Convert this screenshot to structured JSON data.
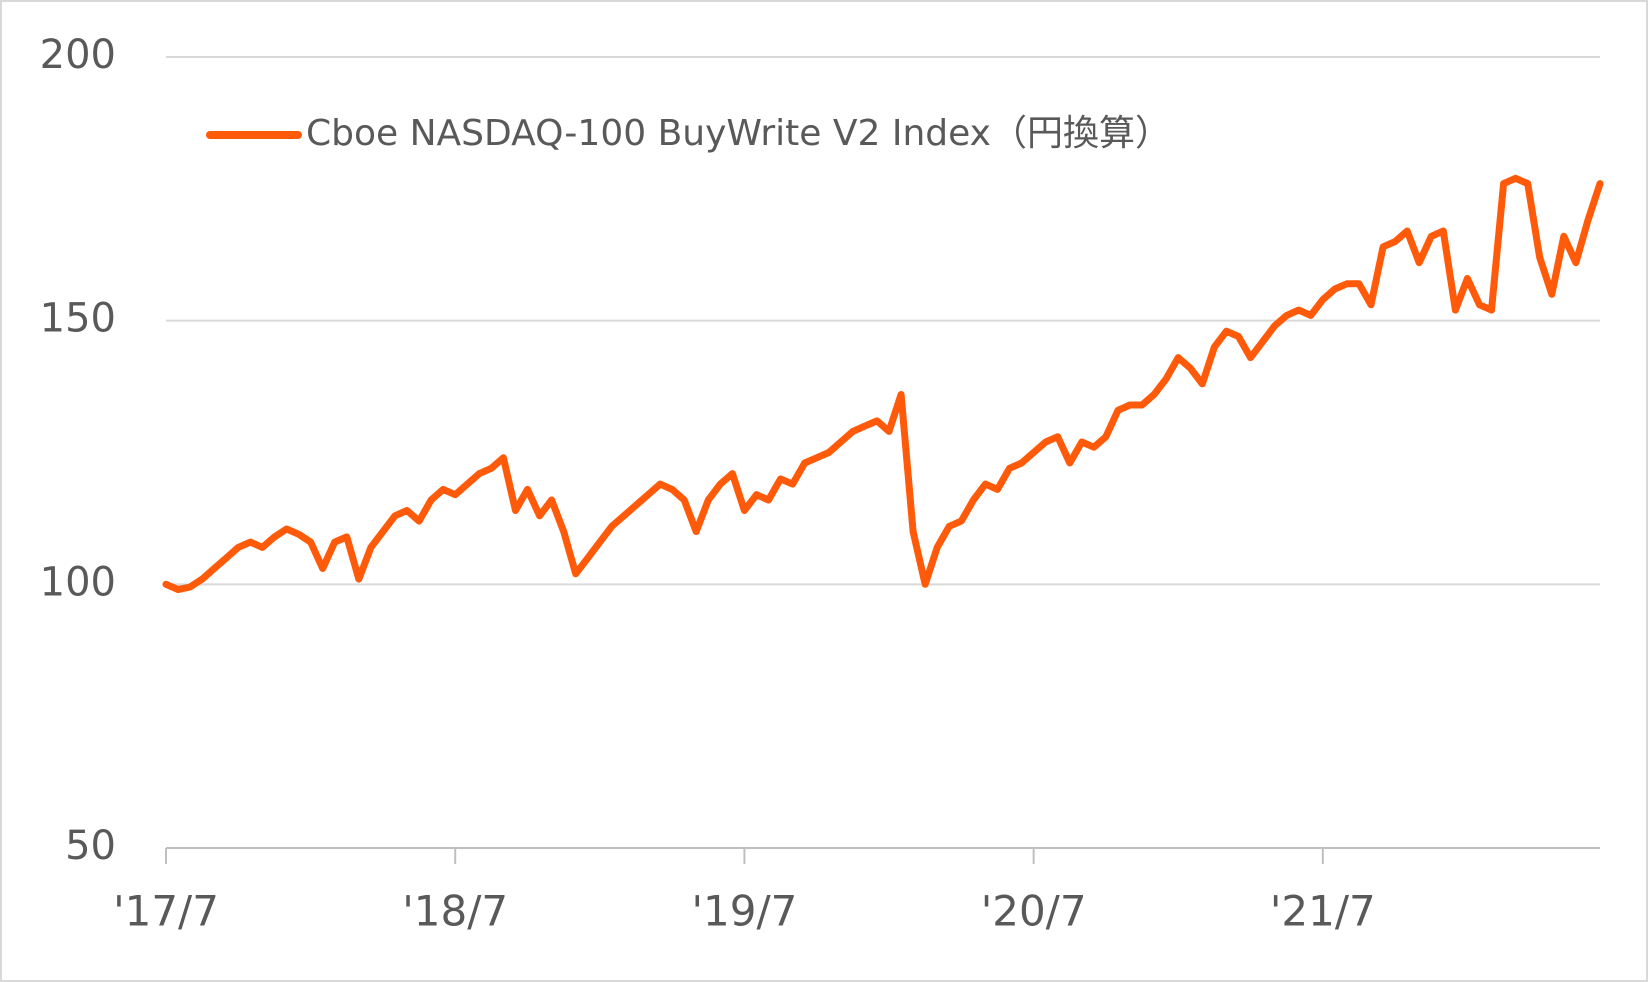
{
  "chart_data": {
    "type": "line",
    "categories": [
      "'17/7",
      null,
      null,
      null,
      null,
      null,
      null,
      null,
      null,
      null,
      null,
      null,
      null,
      null,
      null,
      null,
      null,
      null,
      null,
      null,
      null,
      null,
      null,
      null,
      "'18/7",
      null,
      null,
      null,
      null,
      null,
      null,
      null,
      null,
      null,
      null,
      null,
      null,
      null,
      null,
      null,
      null,
      null,
      null,
      null,
      null,
      null,
      null,
      null,
      "'19/7",
      null,
      null,
      null,
      null,
      null,
      null,
      null,
      null,
      null,
      null,
      null,
      null,
      null,
      null,
      null,
      null,
      null,
      null,
      null,
      null,
      null,
      null,
      null,
      "'20/7",
      null,
      null,
      null,
      null,
      null,
      null,
      null,
      null,
      null,
      null,
      null,
      null,
      null,
      null,
      null,
      null,
      null,
      null,
      null,
      null,
      null,
      null,
      null,
      "'21/7",
      null,
      null,
      null,
      null,
      null,
      null,
      null,
      null,
      null,
      null,
      null,
      null,
      null,
      null,
      null,
      null,
      null,
      null,
      null,
      null,
      null,
      null,
      null
    ],
    "series": [
      {
        "name": "Cboe NASDAQ-100 BuyWrite V2 Index（円換算）",
        "color": "#ff5a0a",
        "values": [
          100,
          99,
          99.5,
          101,
          103,
          105,
          107,
          108,
          107,
          109,
          110.5,
          109.5,
          108,
          103,
          108,
          109,
          101,
          107,
          110,
          113,
          114,
          112,
          116,
          118,
          117,
          119,
          121,
          122,
          124,
          114,
          118,
          113,
          116,
          110,
          102,
          105,
          108,
          111,
          113,
          115,
          117,
          119,
          118,
          116,
          110,
          116,
          119,
          121,
          114,
          117,
          116,
          120,
          119,
          123,
          124,
          125,
          127,
          129,
          130,
          131,
          129,
          136,
          110,
          100,
          107,
          111,
          112,
          116,
          119,
          118,
          122,
          123,
          125,
          127,
          128,
          123,
          127,
          126,
          128,
          133,
          134,
          134,
          136,
          139,
          143,
          141,
          138,
          145,
          148,
          147,
          143,
          146,
          149,
          151,
          152,
          151,
          154,
          156,
          157,
          157,
          153,
          164,
          165,
          167,
          161,
          166,
          167,
          152,
          158,
          153,
          152,
          176,
          177,
          176,
          162,
          155,
          166,
          161,
          169,
          176
        ]
      }
    ],
    "ylim": [
      50,
      200
    ],
    "yticks": [
      50,
      100,
      150,
      200
    ],
    "grid": true,
    "legend": "upper left"
  }
}
